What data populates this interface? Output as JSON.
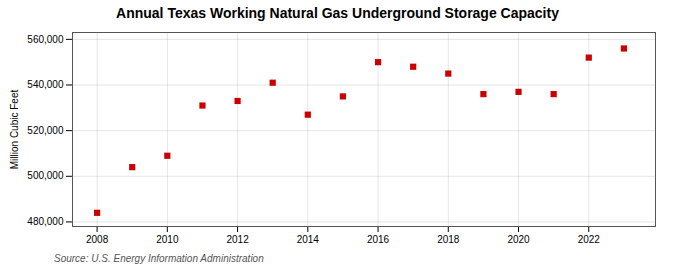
{
  "chart_data": {
    "type": "scatter",
    "title": "Annual Texas Working Natural Gas Underground Storage Capacity",
    "ylabel": "Million Cubic Feet",
    "source": "Source: U.S. Energy Information Administration",
    "x": [
      2008,
      2009,
      2010,
      2011,
      2012,
      2013,
      2014,
      2015,
      2016,
      2017,
      2018,
      2019,
      2020,
      2021,
      2022,
      2023
    ],
    "values": [
      484000,
      504000,
      509000,
      531000,
      533000,
      541000,
      527000,
      535000,
      550000,
      548000,
      545000,
      536000,
      537000,
      536000,
      552000,
      556000
    ],
    "color": "#cc0000",
    "marker": "square",
    "xlim": [
      2007.3,
      2023.9
    ],
    "xticks": [
      2008,
      2010,
      2012,
      2014,
      2016,
      2018,
      2020,
      2022
    ],
    "ylim": [
      478000,
      563000
    ],
    "yticks": [
      {
        "value": 480000,
        "label": "480,000"
      },
      {
        "value": 500000,
        "label": "500,000"
      },
      {
        "value": 520000,
        "label": "520,000"
      },
      {
        "value": 540000,
        "label": "540,000"
      },
      {
        "value": 560000,
        "label": "560,000"
      }
    ],
    "grid": true
  }
}
